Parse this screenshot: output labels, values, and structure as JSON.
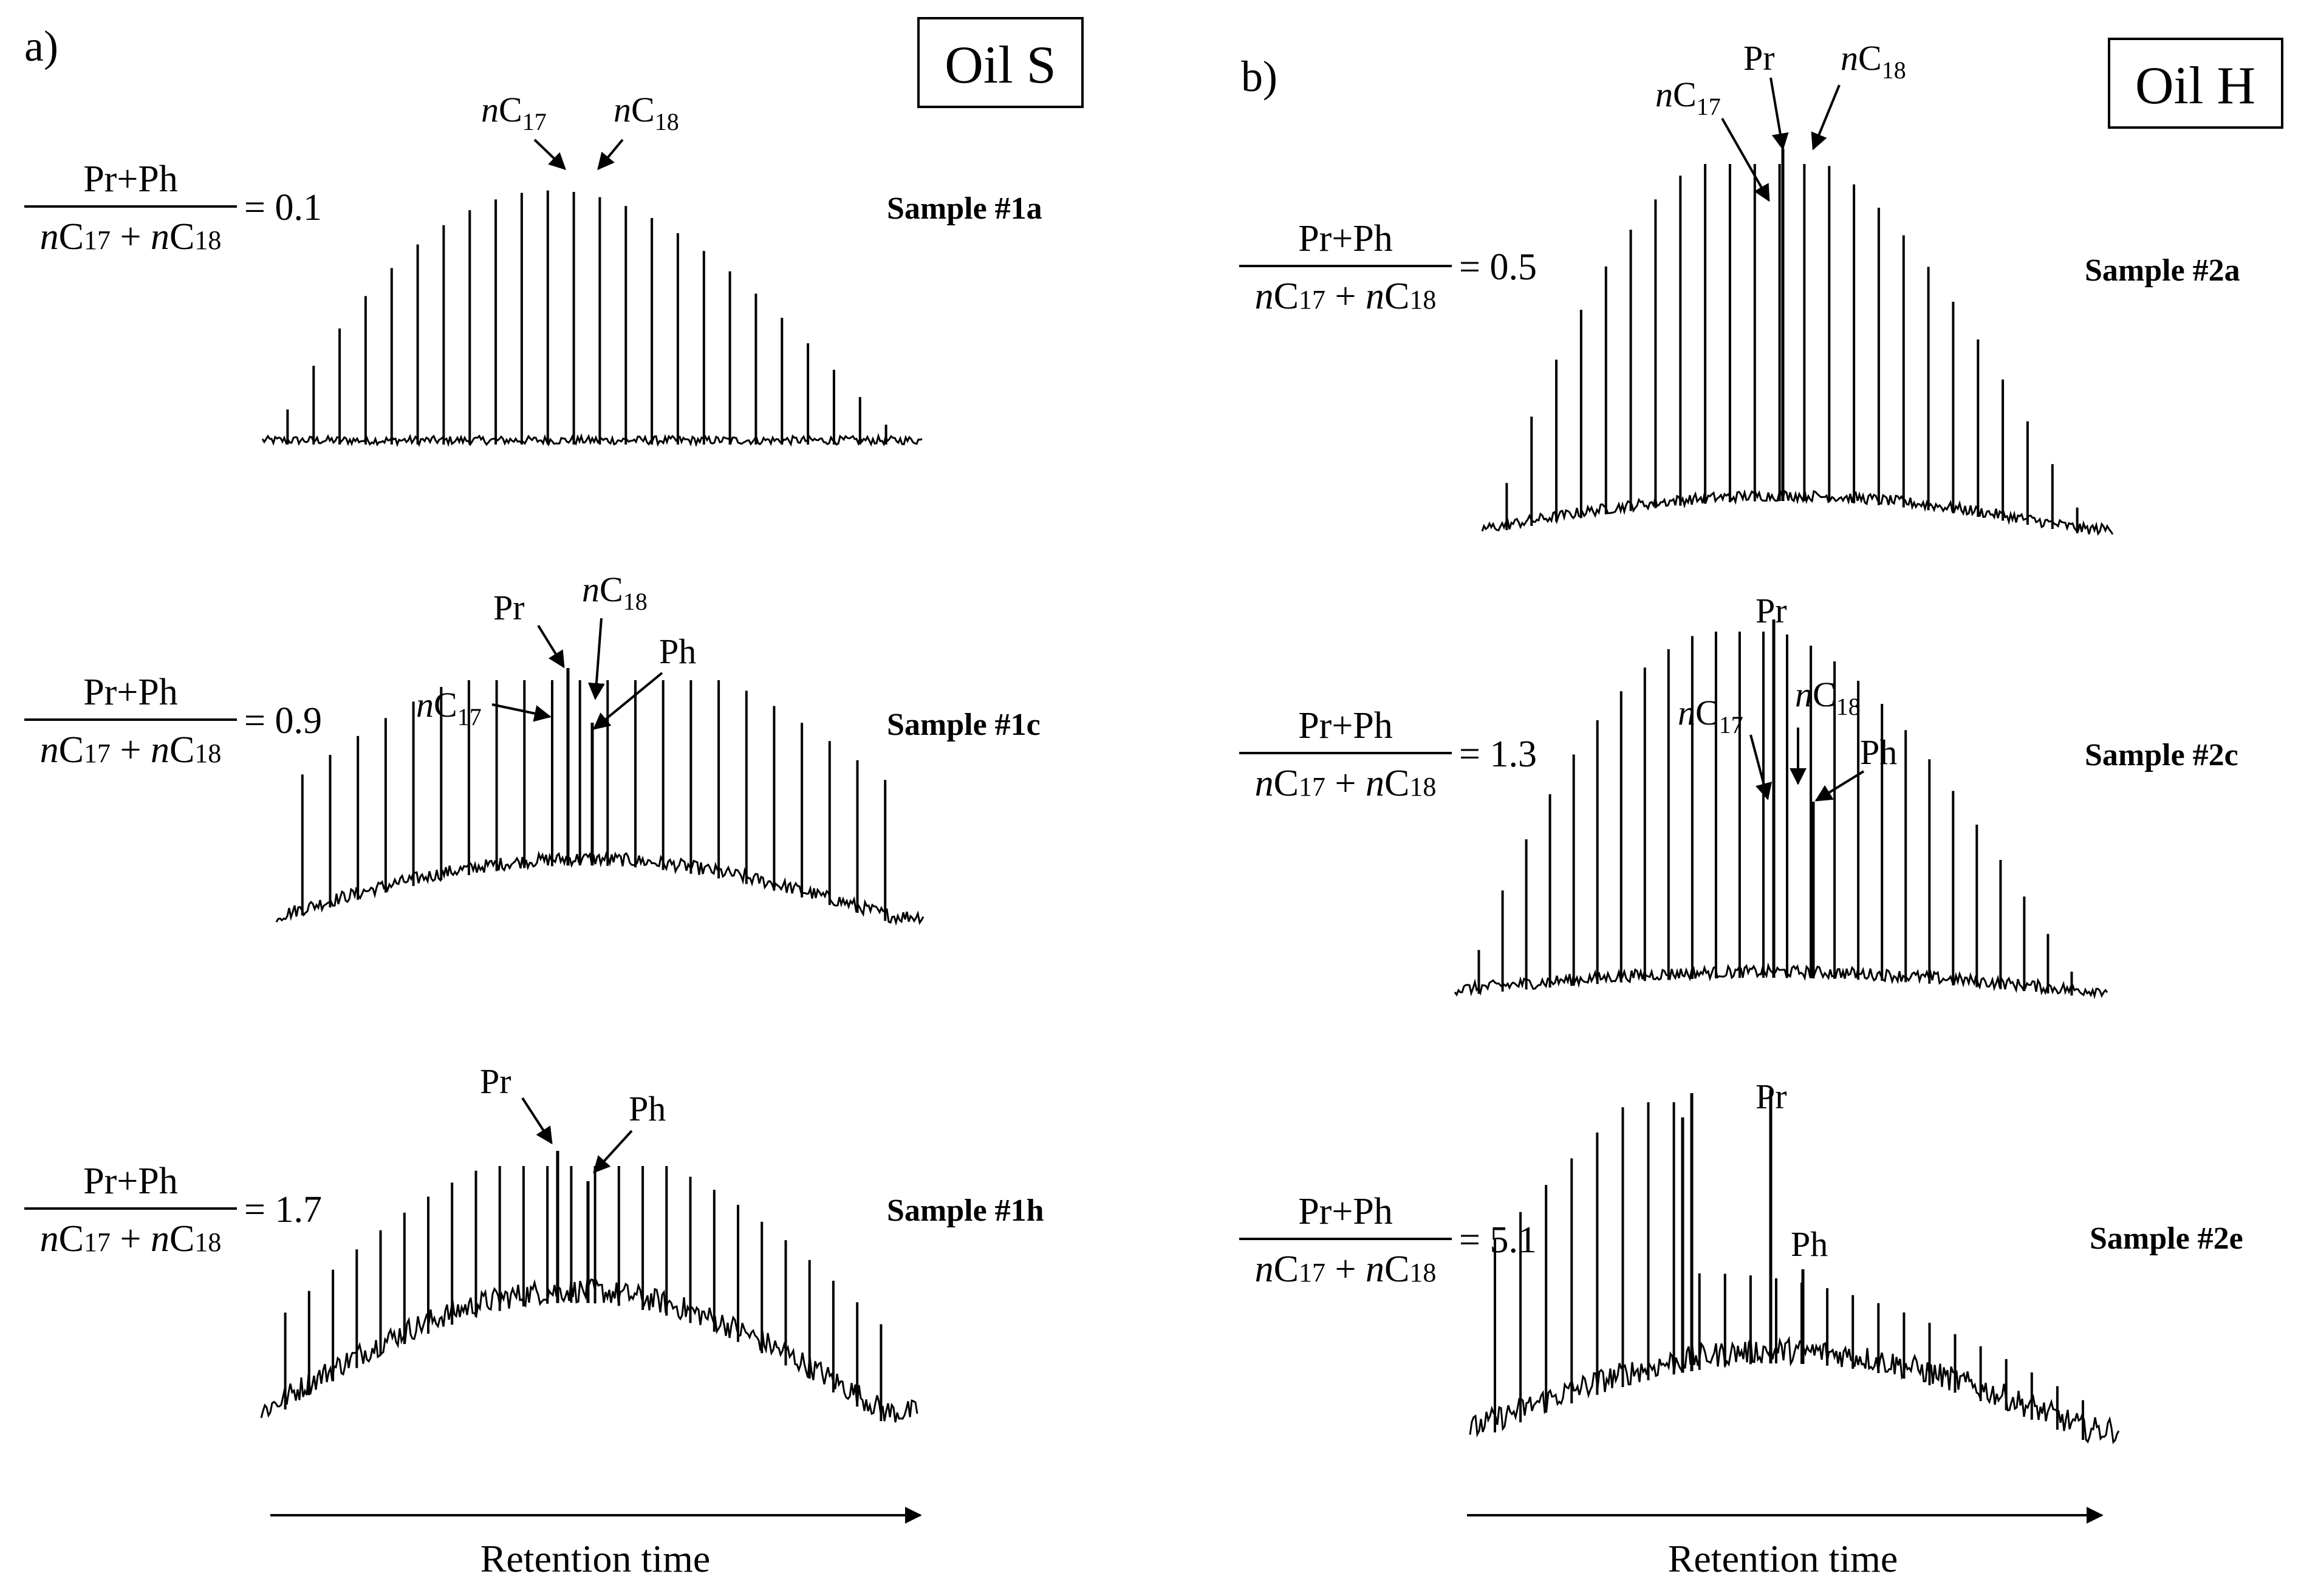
{
  "figure": {
    "panels": [
      {
        "letter": "a)",
        "oil": "Oil S"
      },
      {
        "letter": "b)",
        "oil": "Oil H"
      }
    ],
    "formula": {
      "numerator": "Pr+Ph",
      "denominator": "nC17 + nC18"
    },
    "axis_label": "Retention time"
  },
  "chart_data": [
    {
      "type": "line",
      "panel": "a",
      "oil": "Oil S",
      "sample": "Sample #1a",
      "ratio": "0.1",
      "ratio_expression": "(Pr+Ph)/(nC17+nC18) = 0.1",
      "xlabel": "Retention time",
      "ylabel": "",
      "peak_labels": [
        "nC17",
        "nC18"
      ]
    },
    {
      "type": "line",
      "panel": "a",
      "oil": "Oil S",
      "sample": "Sample #1c",
      "ratio": "0.9",
      "ratio_expression": "(Pr+Ph)/(nC17+nC18) = 0.9",
      "xlabel": "Retention time",
      "ylabel": "",
      "peak_labels": [
        "Pr",
        "nC18",
        "Ph",
        "nC17"
      ]
    },
    {
      "type": "line",
      "panel": "a",
      "oil": "Oil S",
      "sample": "Sample #1h",
      "ratio": "1.7",
      "ratio_expression": "(Pr+Ph)/(nC17+nC18) = 1.7",
      "xlabel": "Retention time",
      "ylabel": "",
      "peak_labels": [
        "Pr",
        "Ph"
      ]
    },
    {
      "type": "line",
      "panel": "b",
      "oil": "Oil H",
      "sample": "Sample #2a",
      "ratio": "0.5",
      "ratio_expression": "(Pr+Ph)/(nC17+nC18) = 0.5",
      "xlabel": "Retention time",
      "ylabel": "",
      "peak_labels": [
        "Pr",
        "nC17",
        "nC18"
      ]
    },
    {
      "type": "line",
      "panel": "b",
      "oil": "Oil H",
      "sample": "Sample #2c",
      "ratio": "1.3",
      "ratio_expression": "(Pr+Ph)/(nC17+nC18) = 1.3",
      "xlabel": "Retention time",
      "ylabel": "",
      "peak_labels": [
        "Pr",
        "nC17",
        "nC18",
        "Ph"
      ]
    },
    {
      "type": "line",
      "panel": "b",
      "oil": "Oil H",
      "sample": "Sample #2e",
      "ratio": "5.1",
      "ratio_expression": "(Pr+Ph)/(nC17+nC18) = 5.1",
      "xlabel": "Retention time",
      "ylabel": "",
      "peak_labels": [
        "Pr",
        "Ph"
      ]
    }
  ]
}
